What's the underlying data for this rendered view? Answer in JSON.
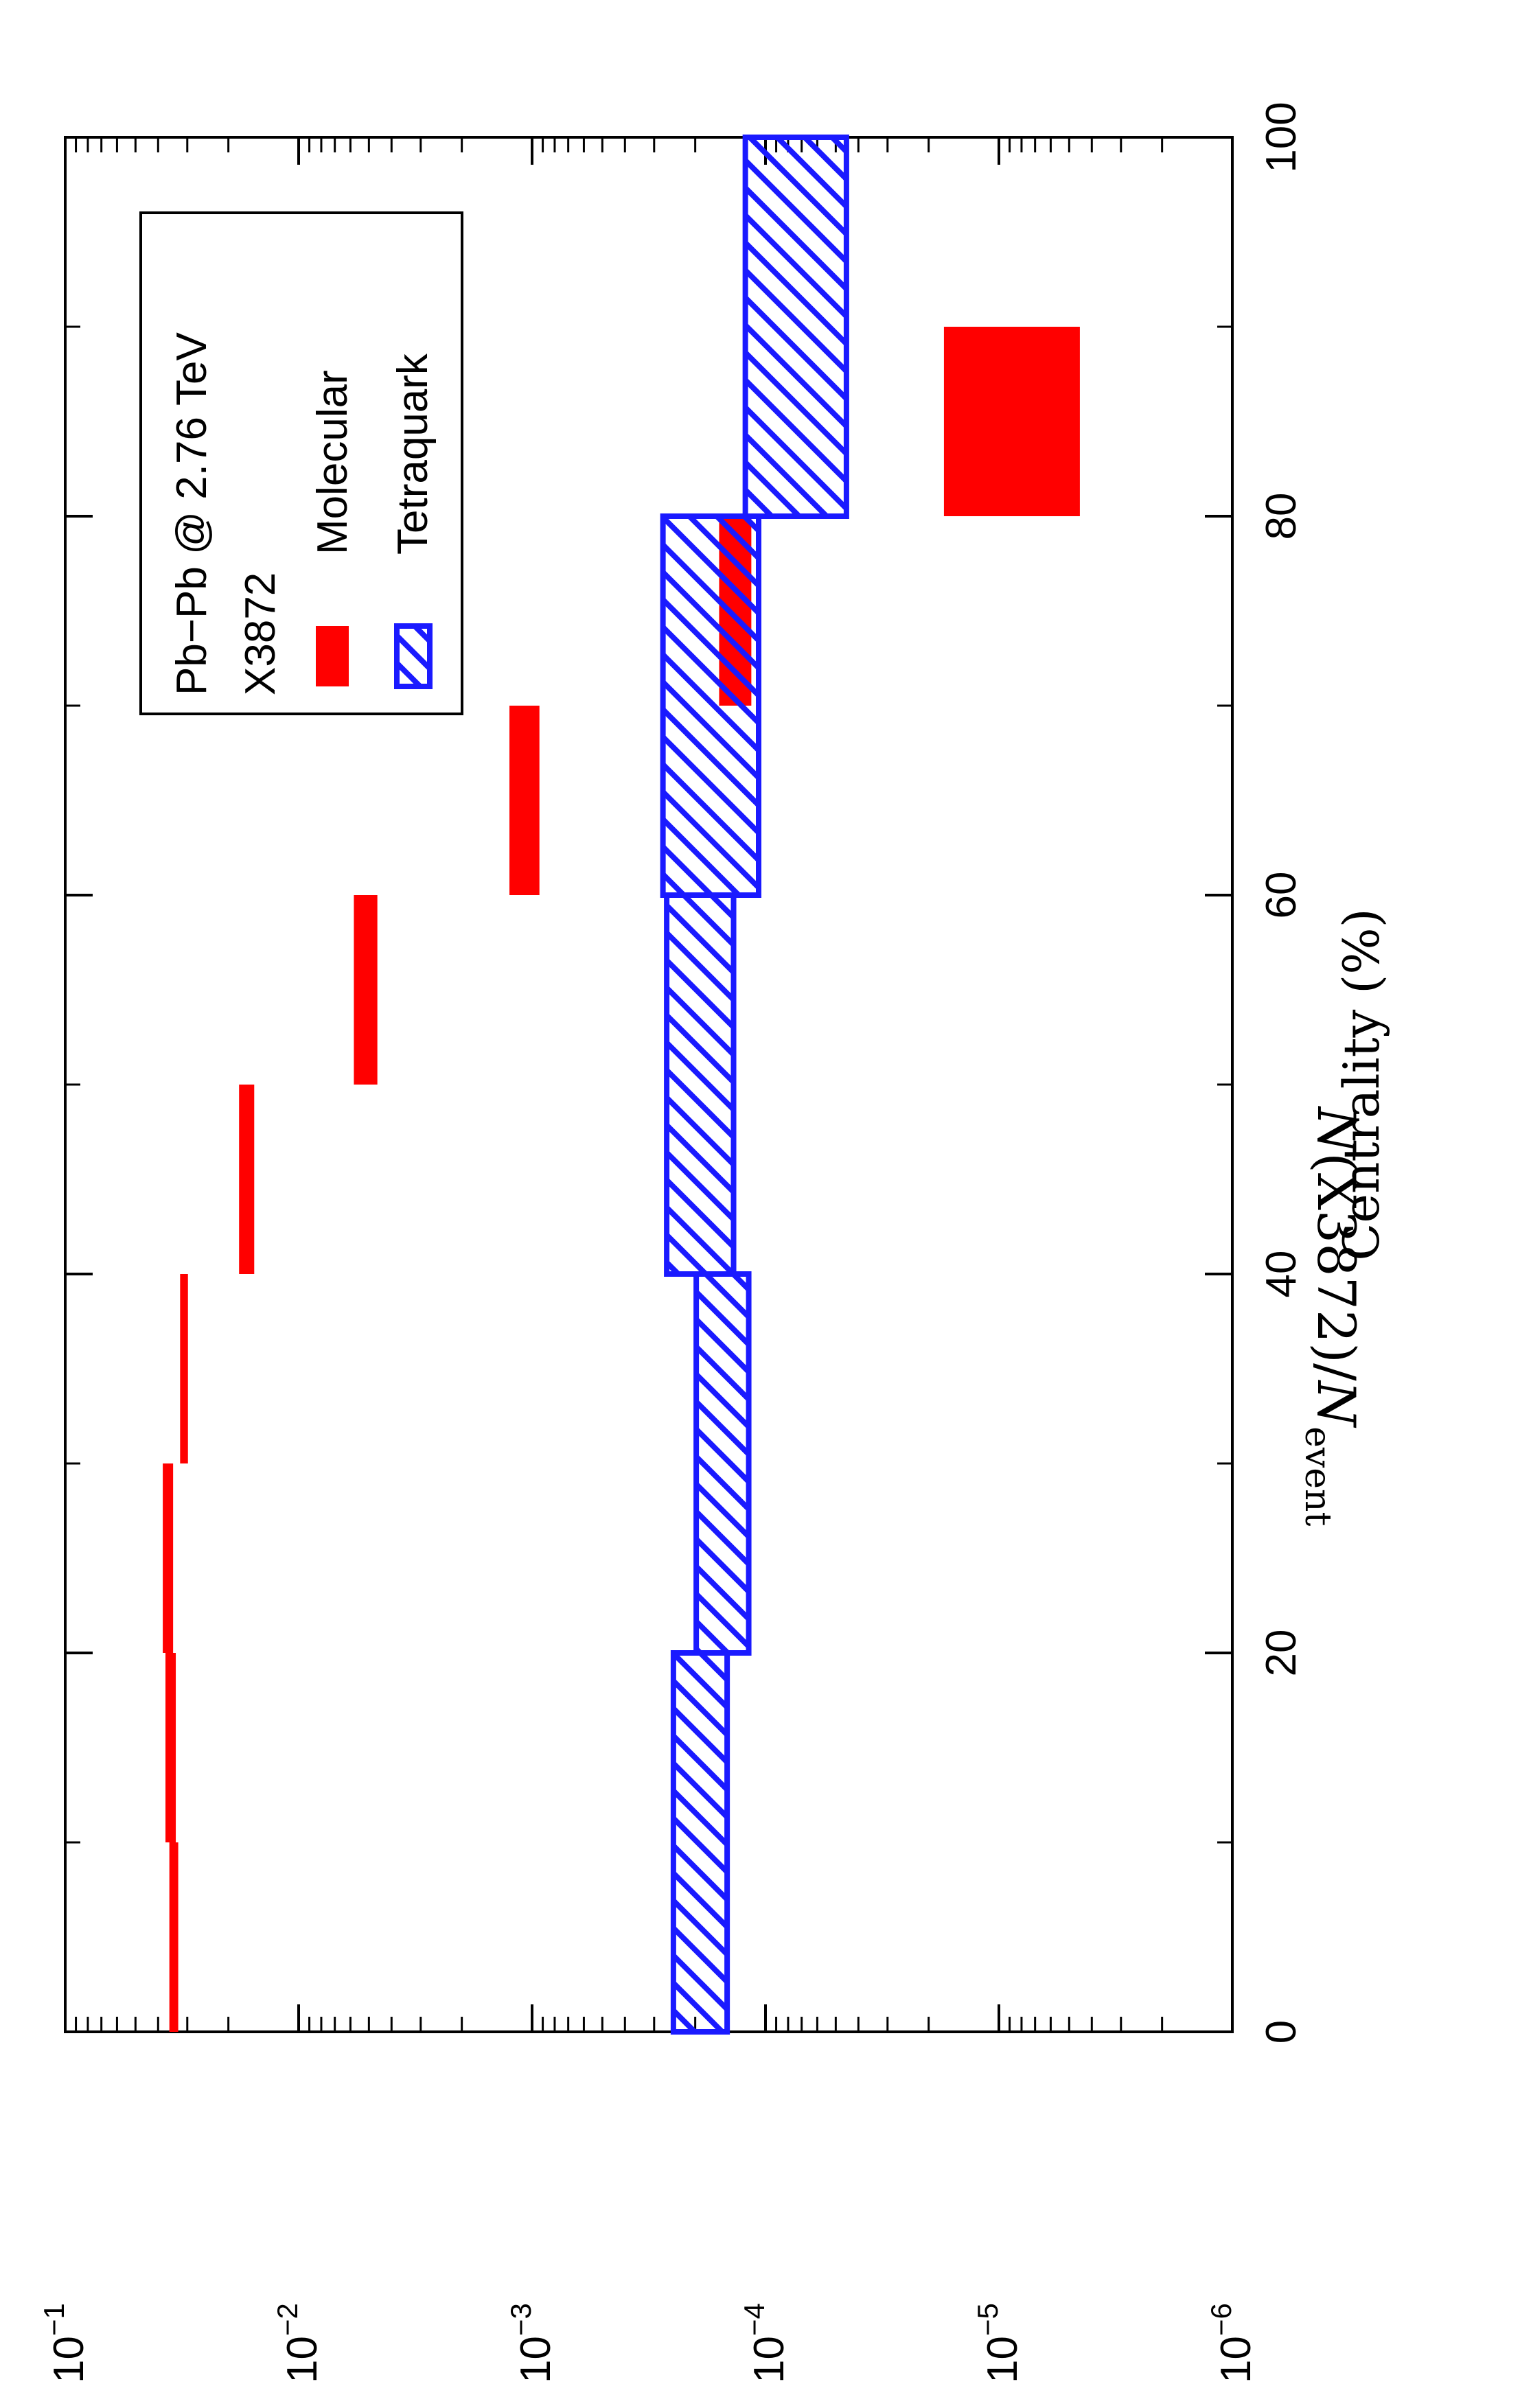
{
  "chart_data": {
    "type": "bar",
    "orientation": "rotated-90",
    "x_label": "Centrality (%)",
    "y_label_parts": {
      "N": "N",
      "middle": "(X3872)/",
      "N2": "N",
      "sub": "event"
    },
    "x_ticks": [
      "0",
      "20",
      "40",
      "60",
      "80",
      "100"
    ],
    "x_tick_values": [
      0,
      20,
      40,
      60,
      80,
      100
    ],
    "y_ticks": [
      {
        "base": "10",
        "exp": "−1",
        "value": 0.1
      },
      {
        "base": "10",
        "exp": "−2",
        "value": 0.01
      },
      {
        "base": "10",
        "exp": "−3",
        "value": 0.001
      },
      {
        "base": "10",
        "exp": "−4",
        "value": 0.0001
      },
      {
        "base": "10",
        "exp": "−5",
        "value": 1e-05
      },
      {
        "base": "10",
        "exp": "−6",
        "value": 1e-06
      }
    ],
    "xlim": [
      0,
      100
    ],
    "ylim": [
      1e-06,
      0.1
    ],
    "yscale": "log",
    "legend": {
      "title": "Pb−Pb @ 2.76 TeV",
      "subtitle": "X3872",
      "placement": "top-left",
      "items": [
        {
          "label": "Molecular",
          "style": "solid"
        },
        {
          "label": "Tetraquark",
          "style": "hatched"
        }
      ]
    },
    "colors": {
      "Molecular": "#ff0000",
      "Tetraquark": "#1a1aff"
    },
    "series": [
      {
        "name": "Molecular",
        "bins": [
          {
            "x": [
              0,
              10
            ],
            "y": [
              0.0328,
              0.0358
            ]
          },
          {
            "x": [
              10,
              20
            ],
            "y": [
              0.0336,
              0.0372
            ]
          },
          {
            "x": [
              20,
              30
            ],
            "y": [
              0.0345,
              0.0382
            ]
          },
          {
            "x": [
              30,
              40
            ],
            "y": [
              0.0298,
              0.0322
            ]
          },
          {
            "x": [
              40,
              50
            ],
            "y": [
              0.0155,
              0.018
            ]
          },
          {
            "x": [
              50,
              60
            ],
            "y": [
              0.0046,
              0.0058
            ]
          },
          {
            "x": [
              60,
              70
            ],
            "y": [
              0.00093,
              0.00125
            ]
          },
          {
            "x": [
              70,
              80
            ],
            "y": [
              0.000115,
              0.000158
            ]
          },
          {
            "x": [
              80,
              90
            ],
            "y": [
              4.5e-06,
              1.72e-05
            ]
          }
        ]
      },
      {
        "name": "Tetraquark",
        "bins": [
          {
            "x": [
              0,
              20
            ],
            "y": [
              0.000146,
              0.000248
            ]
          },
          {
            "x": [
              20,
              40
            ],
            "y": [
              0.000118,
              0.000198
            ]
          },
          {
            "x": [
              40,
              60
            ],
            "y": [
              0.000137,
              0.000265
            ]
          },
          {
            "x": [
              60,
              80
            ],
            "y": [
              0.000107,
              0.000275
            ]
          },
          {
            "x": [
              80,
              100
            ],
            "y": [
              4.5e-05,
              0.000122
            ]
          }
        ]
      }
    ]
  }
}
